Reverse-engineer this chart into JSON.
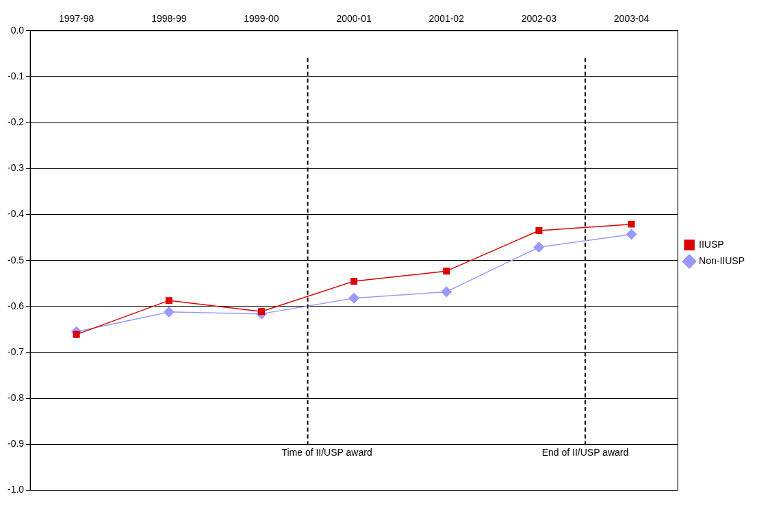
{
  "chart_data": {
    "type": "line",
    "categories": [
      "1997-98",
      "1998-99",
      "1999-00",
      "2000-01",
      "2001-02",
      "2002-03",
      "2003-04"
    ],
    "series": [
      {
        "name": "Non-IIUSP",
        "color": "#9999ff",
        "marker": "diamond",
        "values": [
          -0.655,
          -0.612,
          -0.616,
          -0.582,
          -0.568,
          -0.471,
          -0.443
        ]
      },
      {
        "name": "IIUSP",
        "color": "#dd0000",
        "marker": "square",
        "values": [
          -0.661,
          -0.587,
          -0.611,
          -0.545,
          -0.523,
          -0.435,
          -0.421
        ]
      }
    ],
    "ylim": [
      -1.0,
      0.0
    ],
    "yticks": [
      {
        "value": -1.0,
        "label": "-1.0"
      },
      {
        "value": -0.9,
        "label": "-0.9"
      },
      {
        "value": -0.8,
        "label": "-0.8"
      },
      {
        "value": -0.7,
        "label": "-0.7"
      },
      {
        "value": -0.6,
        "label": "-0.6"
      },
      {
        "value": -0.5,
        "label": "-0.5"
      },
      {
        "value": -0.4,
        "label": "-0.4"
      },
      {
        "value": -0.3,
        "label": "-0.3"
      },
      {
        "value": -0.2,
        "label": "-0.2"
      },
      {
        "value": -0.1,
        "label": "-0.1"
      },
      {
        "value": 0.0,
        "label": "0.0"
      }
    ],
    "annotations": [
      "Time of II/USP award",
      "End of II/USP award"
    ],
    "grid": "y",
    "legend": "right",
    "line_style": "solid"
  }
}
